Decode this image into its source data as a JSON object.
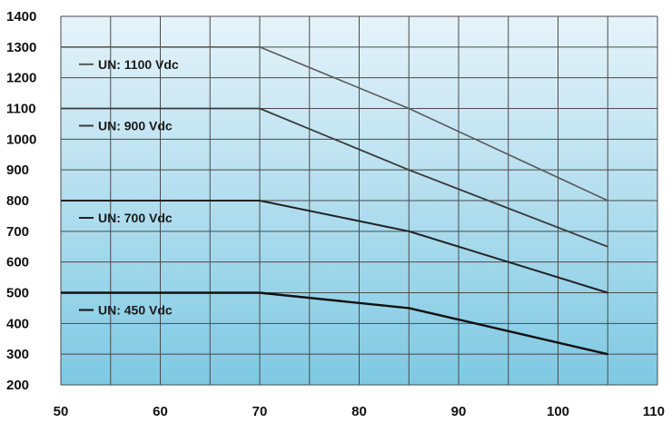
{
  "chart_data": {
    "type": "line",
    "title": "",
    "xlabel": "",
    "ylabel": "",
    "xlim": [
      50,
      110
    ],
    "ylim": [
      200,
      1400
    ],
    "x_ticks": [
      50,
      60,
      70,
      80,
      90,
      100,
      110
    ],
    "y_ticks": [
      200,
      300,
      400,
      500,
      600,
      700,
      800,
      900,
      1000,
      1100,
      1200,
      1300,
      1400
    ],
    "grid": true,
    "legend": "inline labels",
    "background_gradient": [
      "#e6f3fa",
      "#7ec9e3"
    ],
    "series": [
      {
        "name": "UN: 1100 Vdc",
        "color": "#5a5a5a",
        "points": [
          [
            50,
            1300
          ],
          [
            70,
            1300
          ],
          [
            85,
            1100
          ],
          [
            105,
            800
          ]
        ]
      },
      {
        "name": "UN: 900 Vdc",
        "color": "#3a3a3a",
        "points": [
          [
            50,
            1100
          ],
          [
            70,
            1100
          ],
          [
            85,
            900
          ],
          [
            105,
            650
          ]
        ]
      },
      {
        "name": "UN: 700 Vdc",
        "color": "#222222",
        "points": [
          [
            50,
            800
          ],
          [
            70,
            800
          ],
          [
            85,
            700
          ],
          [
            105,
            500
          ]
        ]
      },
      {
        "name": "UN: 450 Vdc",
        "color": "#111111",
        "points": [
          [
            50,
            500
          ],
          [
            70,
            500
          ],
          [
            85,
            450
          ],
          [
            105,
            300
          ]
        ]
      }
    ]
  }
}
